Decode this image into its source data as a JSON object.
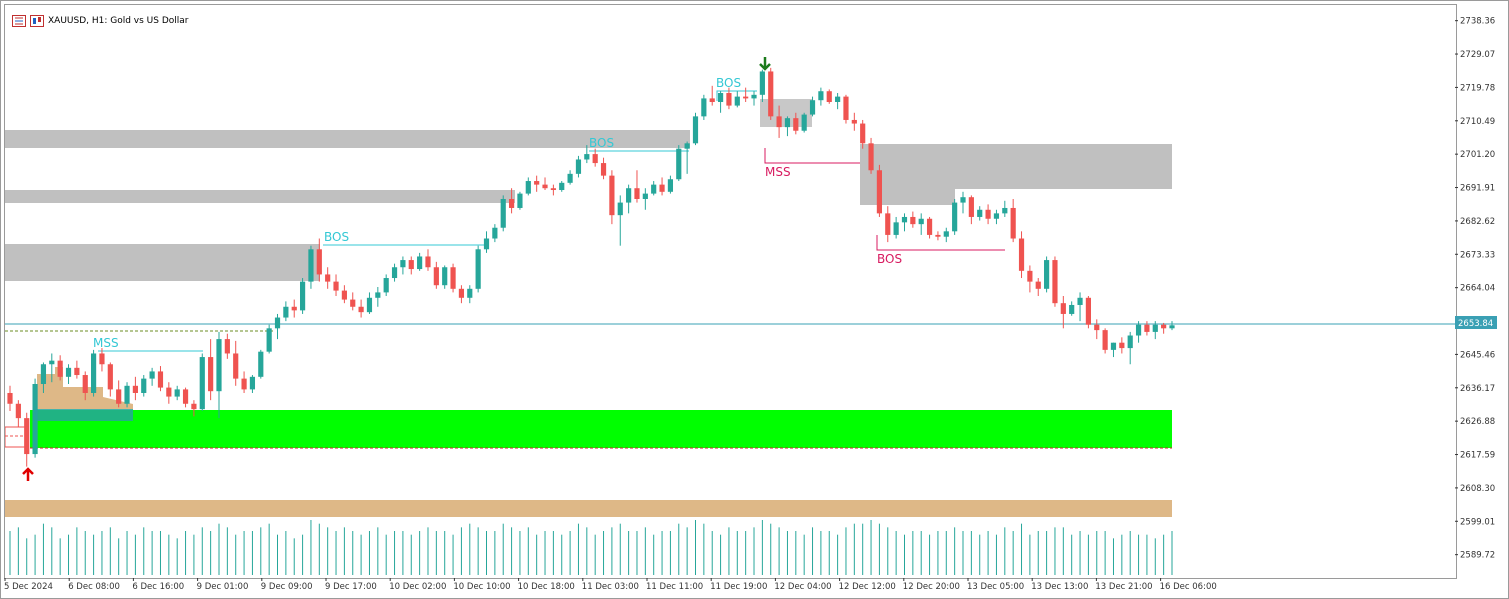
{
  "window": {
    "symbol_title": "XAUUSD, H1:  Gold vs US Dollar"
  },
  "icons": [
    "chart-bars-icon",
    "chart-candles-icon",
    "arrow-up-icon",
    "arrow-down-icon"
  ],
  "colors": {
    "bull": "#26a69a",
    "bear": "#ef5350",
    "structure": "#34c8d4",
    "structure_bear": "#d81b60",
    "zone_gray": "#c0c0c0",
    "zone_green": "#00ff00",
    "zone_tan": "#deb887",
    "current_price_line": "#3aa0b4",
    "current_price_bg": "#3aa0b4"
  },
  "price_axis": {
    "labels": [
      "2738.36",
      "2729.07",
      "2719.78",
      "2710.49",
      "2701.20",
      "2691.91",
      "2682.62",
      "2673.33",
      "2664.04",
      "2645.46",
      "2636.17",
      "2626.88",
      "2617.59",
      "2608.30",
      "2599.01",
      "2589.72"
    ],
    "current_price": "2653.84"
  },
  "time_axis": {
    "labels": [
      "5 Dec 2024",
      "6 Dec 08:00",
      "6 Dec 16:00",
      "9 Dec 01:00",
      "9 Dec 09:00",
      "9 Dec 17:00",
      "10 Dec 02:00",
      "10 Dec 10:00",
      "10 Dec 18:00",
      "11 Dec 03:00",
      "11 Dec 11:00",
      "11 Dec 19:00",
      "12 Dec 04:00",
      "12 Dec 12:00",
      "12 Dec 20:00",
      "13 Dec 05:00",
      "13 Dec 13:00",
      "13 Dec 21:00",
      "16 Dec 06:00"
    ]
  },
  "structure_labels": {
    "mss_1": "MSS",
    "bos_1": "BOS",
    "bos_2": "BOS",
    "bos_3": "BOS",
    "mss_2": "MSS",
    "bos_4": "BOS"
  },
  "chart_data": {
    "type": "candlestick",
    "title": "XAUUSD, H1:  Gold vs US Dollar",
    "ylim": [
      2583.5,
      2743.0
    ],
    "current_price": 2653.84,
    "ohlc": [
      [
        2635.0,
        2637.0,
        2630.0,
        2632.0
      ],
      [
        2632.0,
        2633.0,
        2625.5,
        2628.0
      ],
      [
        2628.0,
        2629.5,
        2614.5,
        2618.0
      ],
      [
        2618.0,
        2639.0,
        2617.0,
        2637.5
      ],
      [
        2637.5,
        2643.5,
        2635.0,
        2643.0
      ],
      [
        2643.0,
        2646.0,
        2638.0,
        2644.0
      ],
      [
        2644.0,
        2645.5,
        2638.5,
        2639.5
      ],
      [
        2639.5,
        2643.0,
        2637.5,
        2642.0
      ],
      [
        2642.0,
        2644.0,
        2639.0,
        2640.0
      ],
      [
        2640.0,
        2641.0,
        2633.0,
        2635.0
      ],
      [
        2635.0,
        2647.0,
        2634.0,
        2646.0
      ],
      [
        2646.0,
        2647.5,
        2641.0,
        2643.0
      ],
      [
        2643.0,
        2643.5,
        2634.0,
        2636.0
      ],
      [
        2636.0,
        2638.5,
        2631.0,
        2632.0
      ],
      [
        2632.0,
        2638.0,
        2631.0,
        2637.0
      ],
      [
        2637.0,
        2639.5,
        2633.0,
        2635.0
      ],
      [
        2635.0,
        2640.0,
        2634.0,
        2639.0
      ],
      [
        2639.0,
        2642.0,
        2637.0,
        2641.0
      ],
      [
        2641.0,
        2642.5,
        2635.5,
        2636.5
      ],
      [
        2636.5,
        2638.0,
        2632.0,
        2634.0
      ],
      [
        2634.0,
        2637.0,
        2633.0,
        2636.0
      ],
      [
        2636.0,
        2636.5,
        2631.0,
        2632.0
      ],
      [
        2632.0,
        2633.0,
        2628.5,
        2630.5
      ],
      [
        2630.5,
        2646.0,
        2630.0,
        2645.0
      ],
      [
        2645.0,
        2650.0,
        2633.0,
        2635.5
      ],
      [
        2635.5,
        2652.0,
        2628.0,
        2650.0
      ],
      [
        2650.0,
        2651.5,
        2644.5,
        2646.0
      ],
      [
        2646.0,
        2649.5,
        2637.0,
        2639.0
      ],
      [
        2639.0,
        2641.0,
        2635.0,
        2636.0
      ],
      [
        2636.0,
        2640.0,
        2635.0,
        2639.5
      ],
      [
        2639.5,
        2647.0,
        2639.0,
        2646.5
      ],
      [
        2646.5,
        2654.0,
        2646.0,
        2653.0
      ],
      [
        2653.0,
        2657.0,
        2650.0,
        2656.0
      ],
      [
        2656.0,
        2660.5,
        2655.0,
        2659.0
      ],
      [
        2659.0,
        2661.0,
        2656.0,
        2658.0
      ],
      [
        2658.0,
        2667.0,
        2657.0,
        2666.0
      ],
      [
        2666.0,
        2676.0,
        2664.0,
        2675.0
      ],
      [
        2675.0,
        2678.0,
        2666.0,
        2668.0
      ],
      [
        2668.0,
        2670.0,
        2664.0,
        2666.0
      ],
      [
        2666.0,
        2668.0,
        2662.0,
        2663.5
      ],
      [
        2663.5,
        2665.0,
        2660.0,
        2661.0
      ],
      [
        2661.0,
        2663.0,
        2658.0,
        2659.0
      ],
      [
        2659.0,
        2661.0,
        2656.0,
        2657.5
      ],
      [
        2657.5,
        2663.0,
        2657.0,
        2661.5
      ],
      [
        2661.5,
        2664.5,
        2659.0,
        2663.0
      ],
      [
        2663.0,
        2668.0,
        2662.0,
        2667.0
      ],
      [
        2667.0,
        2671.0,
        2666.0,
        2670.0
      ],
      [
        2670.0,
        2673.0,
        2668.0,
        2672.0
      ],
      [
        2672.0,
        2673.0,
        2668.0,
        2669.5
      ],
      [
        2669.5,
        2674.0,
        2669.0,
        2673.0
      ],
      [
        2673.0,
        2675.0,
        2669.0,
        2670.0
      ],
      [
        2670.0,
        2671.5,
        2664.0,
        2665.0
      ],
      [
        2665.0,
        2670.5,
        2664.0,
        2670.0
      ],
      [
        2670.0,
        2671.0,
        2663.0,
        2664.0
      ],
      [
        2664.0,
        2665.0,
        2660.0,
        2661.5
      ],
      [
        2661.5,
        2665.0,
        2660.0,
        2664.0
      ],
      [
        2664.0,
        2676.0,
        2663.0,
        2675.0
      ],
      [
        2675.0,
        2680.0,
        2674.0,
        2678.0
      ],
      [
        2678.0,
        2682.0,
        2677.0,
        2681.0
      ],
      [
        2681.0,
        2690.0,
        2680.0,
        2689.0
      ],
      [
        2689.0,
        2692.0,
        2685.0,
        2686.5
      ],
      [
        2686.5,
        2691.0,
        2686.0,
        2690.5
      ],
      [
        2690.5,
        2695.0,
        2690.0,
        2694.0
      ],
      [
        2694.0,
        2695.5,
        2691.0,
        2693.0
      ],
      [
        2693.0,
        2695.0,
        2691.5,
        2692.0
      ],
      [
        2692.0,
        2693.0,
        2690.0,
        2691.5
      ],
      [
        2691.5,
        2694.0,
        2691.0,
        2693.5
      ],
      [
        2693.5,
        2697.0,
        2693.0,
        2696.0
      ],
      [
        2696.0,
        2701.0,
        2695.0,
        2700.0
      ],
      [
        2700.0,
        2704.0,
        2699.0,
        2701.5
      ],
      [
        2701.5,
        2703.0,
        2698.0,
        2699.0
      ],
      [
        2699.0,
        2700.5,
        2694.5,
        2695.5
      ],
      [
        2695.5,
        2697.0,
        2682.0,
        2684.5
      ],
      [
        2684.5,
        2690.0,
        2676.0,
        2688.0
      ],
      [
        2688.0,
        2693.0,
        2685.0,
        2692.0
      ],
      [
        2692.0,
        2697.0,
        2688.0,
        2689.0
      ],
      [
        2689.0,
        2692.0,
        2686.0,
        2690.5
      ],
      [
        2690.5,
        2694.0,
        2690.0,
        2693.0
      ],
      [
        2693.0,
        2695.0,
        2690.0,
        2691.0
      ],
      [
        2691.0,
        2695.5,
        2690.5,
        2694.5
      ],
      [
        2694.5,
        2704.0,
        2694.0,
        2703.0
      ],
      [
        2703.0,
        2705.0,
        2696.0,
        2704.5
      ],
      [
        2704.5,
        2713.0,
        2704.0,
        2712.0
      ],
      [
        2712.0,
        2718.0,
        2711.0,
        2717.0
      ],
      [
        2717.0,
        2720.5,
        2715.0,
        2716.0
      ],
      [
        2716.0,
        2719.0,
        2713.0,
        2718.5
      ],
      [
        2718.5,
        2720.0,
        2714.0,
        2715.0
      ],
      [
        2715.0,
        2719.0,
        2714.5,
        2717.5
      ],
      [
        2717.5,
        2720.0,
        2716.0,
        2717.0
      ],
      [
        2717.0,
        2719.0,
        2715.0,
        2718.0
      ],
      [
        2718.0,
        2725.0,
        2716.0,
        2724.5
      ],
      [
        2724.5,
        2725.5,
        2711.0,
        2712.0
      ],
      [
        2712.0,
        2715.0,
        2706.0,
        2709.0
      ],
      [
        2709.0,
        2712.0,
        2706.5,
        2711.5
      ],
      [
        2711.5,
        2713.0,
        2707.0,
        2708.0
      ],
      [
        2708.0,
        2713.0,
        2707.5,
        2712.5
      ],
      [
        2712.5,
        2717.5,
        2712.0,
        2716.5
      ],
      [
        2716.5,
        2720.0,
        2715.0,
        2719.0
      ],
      [
        2719.0,
        2719.5,
        2715.5,
        2716.0
      ],
      [
        2716.0,
        2718.5,
        2714.0,
        2717.5
      ],
      [
        2717.5,
        2718.0,
        2710.0,
        2711.0
      ],
      [
        2711.0,
        2713.0,
        2708.0,
        2710.0
      ],
      [
        2710.0,
        2711.0,
        2703.0,
        2704.5
      ],
      [
        2704.5,
        2706.0,
        2696.0,
        2697.0
      ],
      [
        2697.0,
        2698.5,
        2684.0,
        2685.0
      ],
      [
        2685.0,
        2687.0,
        2677.0,
        2679.0
      ],
      [
        2679.0,
        2684.0,
        2678.0,
        2682.5
      ],
      [
        2682.5,
        2685.0,
        2680.0,
        2684.0
      ],
      [
        2684.0,
        2685.5,
        2681.0,
        2682.0
      ],
      [
        2682.0,
        2685.0,
        2679.0,
        2683.5
      ],
      [
        2683.5,
        2684.0,
        2678.0,
        2679.0
      ],
      [
        2679.0,
        2680.0,
        2677.5,
        2678.5
      ],
      [
        2678.5,
        2681.0,
        2677.0,
        2680.0
      ],
      [
        2680.0,
        2689.0,
        2679.0,
        2688.0
      ],
      [
        2688.0,
        2691.0,
        2685.0,
        2689.5
      ],
      [
        2689.5,
        2690.0,
        2682.0,
        2684.0
      ],
      [
        2684.0,
        2687.0,
        2683.0,
        2686.0
      ],
      [
        2686.0,
        2687.5,
        2682.0,
        2683.5
      ],
      [
        2683.5,
        2686.0,
        2682.0,
        2685.0
      ],
      [
        2685.0,
        2688.5,
        2684.0,
        2686.5
      ],
      [
        2686.5,
        2689.0,
        2677.0,
        2678.0
      ],
      [
        2678.0,
        2680.0,
        2667.0,
        2669.0
      ],
      [
        2669.0,
        2670.5,
        2663.0,
        2666.0
      ],
      [
        2666.0,
        2667.0,
        2662.0,
        2664.0
      ],
      [
        2664.0,
        2673.0,
        2663.0,
        2672.0
      ],
      [
        2672.0,
        2673.0,
        2659.0,
        2660.0
      ],
      [
        2660.0,
        2662.0,
        2653.0,
        2657.0
      ],
      [
        2657.0,
        2660.5,
        2656.5,
        2659.5
      ],
      [
        2659.5,
        2663.0,
        2655.0,
        2661.5
      ],
      [
        2661.5,
        2662.0,
        2653.0,
        2654.0
      ],
      [
        2654.0,
        2655.5,
        2650.0,
        2652.5
      ],
      [
        2652.5,
        2653.0,
        2646.0,
        2647.0
      ],
      [
        2647.0,
        2649.0,
        2645.0,
        2649.0
      ],
      [
        2649.0,
        2650.5,
        2646.0,
        2647.5
      ],
      [
        2647.5,
        2652.0,
        2643.0,
        2651.0
      ],
      [
        2651.0,
        2655.0,
        2649.0,
        2654.0
      ],
      [
        2654.0,
        2655.0,
        2651.0,
        2652.0
      ],
      [
        2652.0,
        2655.0,
        2650.0,
        2654.0
      ],
      [
        2654.0,
        2654.5,
        2651.5,
        2653.0
      ],
      [
        2653.0,
        2655.0,
        2652.5,
        2653.84
      ]
    ],
    "volume": [
      12,
      13,
      10,
      11,
      14,
      13,
      10,
      11,
      13,
      12,
      11,
      12,
      13,
      10,
      12,
      11,
      13,
      12,
      12,
      11,
      10,
      12,
      11,
      13,
      12,
      14,
      13,
      11,
      12,
      12,
      13,
      14,
      11,
      12,
      10,
      11,
      15,
      14,
      13,
      12,
      13,
      12,
      11,
      12,
      13,
      11,
      12,
      12,
      11,
      12,
      13,
      12,
      12,
      11,
      13,
      14,
      13,
      12,
      12,
      14,
      13,
      12,
      13,
      11,
      12,
      12,
      11,
      12,
      14,
      13,
      11,
      12,
      13,
      14,
      12,
      12,
      13,
      11,
      12,
      12,
      14,
      13,
      15,
      14,
      12,
      11,
      13,
      12,
      12,
      13,
      15,
      14,
      13,
      12,
      12,
      11,
      13,
      12,
      12,
      11,
      13,
      14,
      14,
      15,
      14,
      13,
      12,
      11,
      12,
      12,
      11,
      12,
      12,
      13,
      12,
      12,
      11,
      12,
      11,
      13,
      12,
      14,
      11,
      12,
      12,
      13,
      13,
      11,
      12,
      11,
      12,
      12,
      10,
      11,
      12,
      11,
      11,
      10,
      11,
      12,
      11
    ]
  }
}
